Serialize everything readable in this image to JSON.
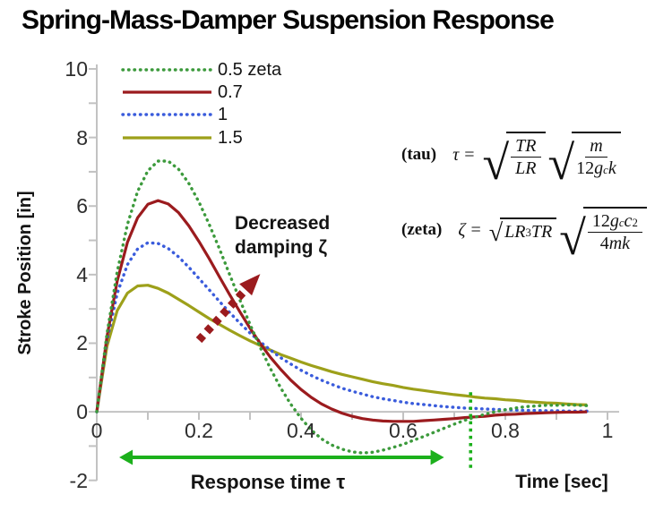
{
  "title": "Spring-Mass-Damper Suspension Response",
  "chart_data": {
    "type": "line",
    "title": "Spring-Mass-Damper Suspension Response",
    "xlabel": "Time [sec]",
    "ylabel": "Stroke Position [in]",
    "xlim": [
      0,
      1
    ],
    "ylim": [
      -2,
      10
    ],
    "grid": false,
    "legend_position": "top-left",
    "axis_color": "#c2c2c2",
    "x_ticks": [
      {
        "v": 0,
        "label": "0"
      },
      {
        "v": 0.2,
        "label": "0.2"
      },
      {
        "v": 0.4,
        "label": "0.4"
      },
      {
        "v": 0.6,
        "label": "0.6"
      },
      {
        "v": 0.8,
        "label": "0.8"
      },
      {
        "v": 1,
        "label": "1"
      }
    ],
    "y_ticks": [
      {
        "v": 10,
        "label": "10"
      },
      {
        "v": 8,
        "label": "8"
      },
      {
        "v": 6,
        "label": "6"
      },
      {
        "v": 4,
        "label": "4"
      },
      {
        "v": 2,
        "label": "2"
      },
      {
        "v": 0,
        "label": "0"
      },
      {
        "v": -2,
        "label": "-2"
      }
    ],
    "x_minor_tick_step": 0.1,
    "y_minor_tick_step": 1,
    "series": [
      {
        "label": "0.5 zeta",
        "zeta": 0.5,
        "color": "#3c9a3c",
        "line_style": "dotted",
        "peak": {
          "t": 0.13,
          "y": 7.31
        },
        "undershoot_min": {
          "t": 0.52,
          "y": -1.2
        },
        "points": {
          "t_start": 0,
          "t_step": 0.02,
          "values": [
            0,
            2.27,
            4.08,
            5.46,
            6.43,
            7.03,
            7.31,
            7.31,
            7.08,
            6.67,
            6.12,
            5.47,
            4.76,
            4.01,
            3.27,
            2.55,
            1.88,
            1.26,
            0.7,
            0.22,
            -0.19,
            -0.53,
            -0.79,
            -0.97,
            -1.09,
            -1.17,
            -1.2,
            -1.18,
            -1.12,
            -1.04,
            -0.95,
            -0.83,
            -0.72,
            -0.6,
            -0.48,
            -0.36,
            -0.25,
            -0.16,
            -0.07,
            0.0,
            0.06,
            0.11,
            0.15,
            0.17,
            0.19,
            0.19,
            0.2,
            0.19,
            0.18
          ]
        }
      },
      {
        "label": "0.7",
        "zeta": 0.7,
        "color": "#9b1b1e",
        "line_style": "solid",
        "peak": {
          "t": 0.12,
          "y": 6.16
        },
        "undershoot_min": {
          "t": 0.6,
          "y": -0.28
        },
        "points": {
          "t_start": 0,
          "t_step": 0.02,
          "values": [
            0,
            2.19,
            3.81,
            4.94,
            5.66,
            6.05,
            6.16,
            6.06,
            5.81,
            5.43,
            4.97,
            4.47,
            3.94,
            3.42,
            2.92,
            2.44,
            1.99,
            1.59,
            1.24,
            0.92,
            0.65,
            0.42,
            0.23,
            0.08,
            -0.04,
            -0.13,
            -0.2,
            -0.24,
            -0.27,
            -0.28,
            -0.28,
            -0.28,
            -0.26,
            -0.24,
            -0.22,
            -0.2,
            -0.17,
            -0.15,
            -0.13,
            -0.1,
            -0.08,
            -0.07,
            -0.05,
            -0.04,
            -0.03,
            -0.02,
            -0.01,
            -0.01,
            0.0
          ]
        }
      },
      {
        "label": "1",
        "zeta": 1,
        "color": "#3a5cdc",
        "line_style": "dotted",
        "peak": {
          "t": 0.11,
          "y": 4.93
        },
        "points": {
          "t_start": 0,
          "t_step": 0.02,
          "values": [
            0,
            2.08,
            3.45,
            4.29,
            4.75,
            4.93,
            4.91,
            4.76,
            4.52,
            4.22,
            3.89,
            3.56,
            3.22,
            2.9,
            2.59,
            2.3,
            2.04,
            1.8,
            1.58,
            1.39,
            1.21,
            1.06,
            0.92,
            0.8,
            0.69,
            0.6,
            0.52,
            0.44,
            0.38,
            0.33,
            0.28,
            0.24,
            0.21,
            0.18,
            0.15,
            0.13,
            0.11,
            0.1,
            0.08,
            0.07,
            0.06,
            0.05,
            0.04,
            0.04,
            0.03,
            0.03,
            0.02,
            0.02,
            0.02
          ]
        }
      },
      {
        "label": "1.5",
        "zeta": 1.5,
        "color": "#9da01a",
        "line_style": "solid",
        "peak": {
          "t": 0.1,
          "y": 3.69
        },
        "points": {
          "t_start": 0,
          "t_step": 0.02,
          "values": [
            0,
            1.91,
            2.95,
            3.46,
            3.67,
            3.69,
            3.6,
            3.46,
            3.28,
            3.1,
            2.91,
            2.72,
            2.55,
            2.38,
            2.22,
            2.07,
            1.93,
            1.8,
            1.67,
            1.56,
            1.45,
            1.35,
            1.26,
            1.17,
            1.09,
            1.02,
            0.95,
            0.88,
            0.82,
            0.77,
            0.71,
            0.66,
            0.62,
            0.58,
            0.54,
            0.5,
            0.47,
            0.43,
            0.4,
            0.38,
            0.35,
            0.33,
            0.3,
            0.28,
            0.26,
            0.25,
            0.23,
            0.21,
            0.2
          ]
        }
      }
    ],
    "annotations": {
      "damping_arrow": {
        "label_line1": "Decreased",
        "label_line2": "damping ζ",
        "color": "#9b1b1e",
        "style": "dashed",
        "from": {
          "t": 0.2,
          "y": 2.09
        },
        "to": {
          "t": 0.32,
          "y": 4.02
        }
      },
      "response_time": {
        "label": "Response time τ",
        "color": "#1cb01c",
        "t_start": 0.044,
        "t_end": 0.68,
        "y": -1.33
      },
      "marker_line": {
        "t": 0.732,
        "y_start": 0.57,
        "y_end": -1.72,
        "color": "#1cb01c",
        "style": "dotted"
      }
    }
  },
  "formulas": {
    "tau": {
      "label": "(tau)",
      "lhs": "τ",
      "eq": "=",
      "root1": {
        "num": "TR",
        "den": "LR"
      },
      "root2": {
        "num": "m",
        "den_coef": "12",
        "den_var": "g",
        "den_sub": "c",
        "den_var2": "k"
      }
    },
    "zeta": {
      "label": "(zeta)",
      "lhs": "ζ",
      "eq": "=",
      "root1": {
        "pre": "LR",
        "sup": "3",
        "post": "TR"
      },
      "root2": {
        "num_coef": "12",
        "num_var": "g",
        "num_sub": "c",
        "num_var2": "c",
        "num_sup": "2",
        "den_coef": "4",
        "den_var": "mk"
      }
    }
  }
}
